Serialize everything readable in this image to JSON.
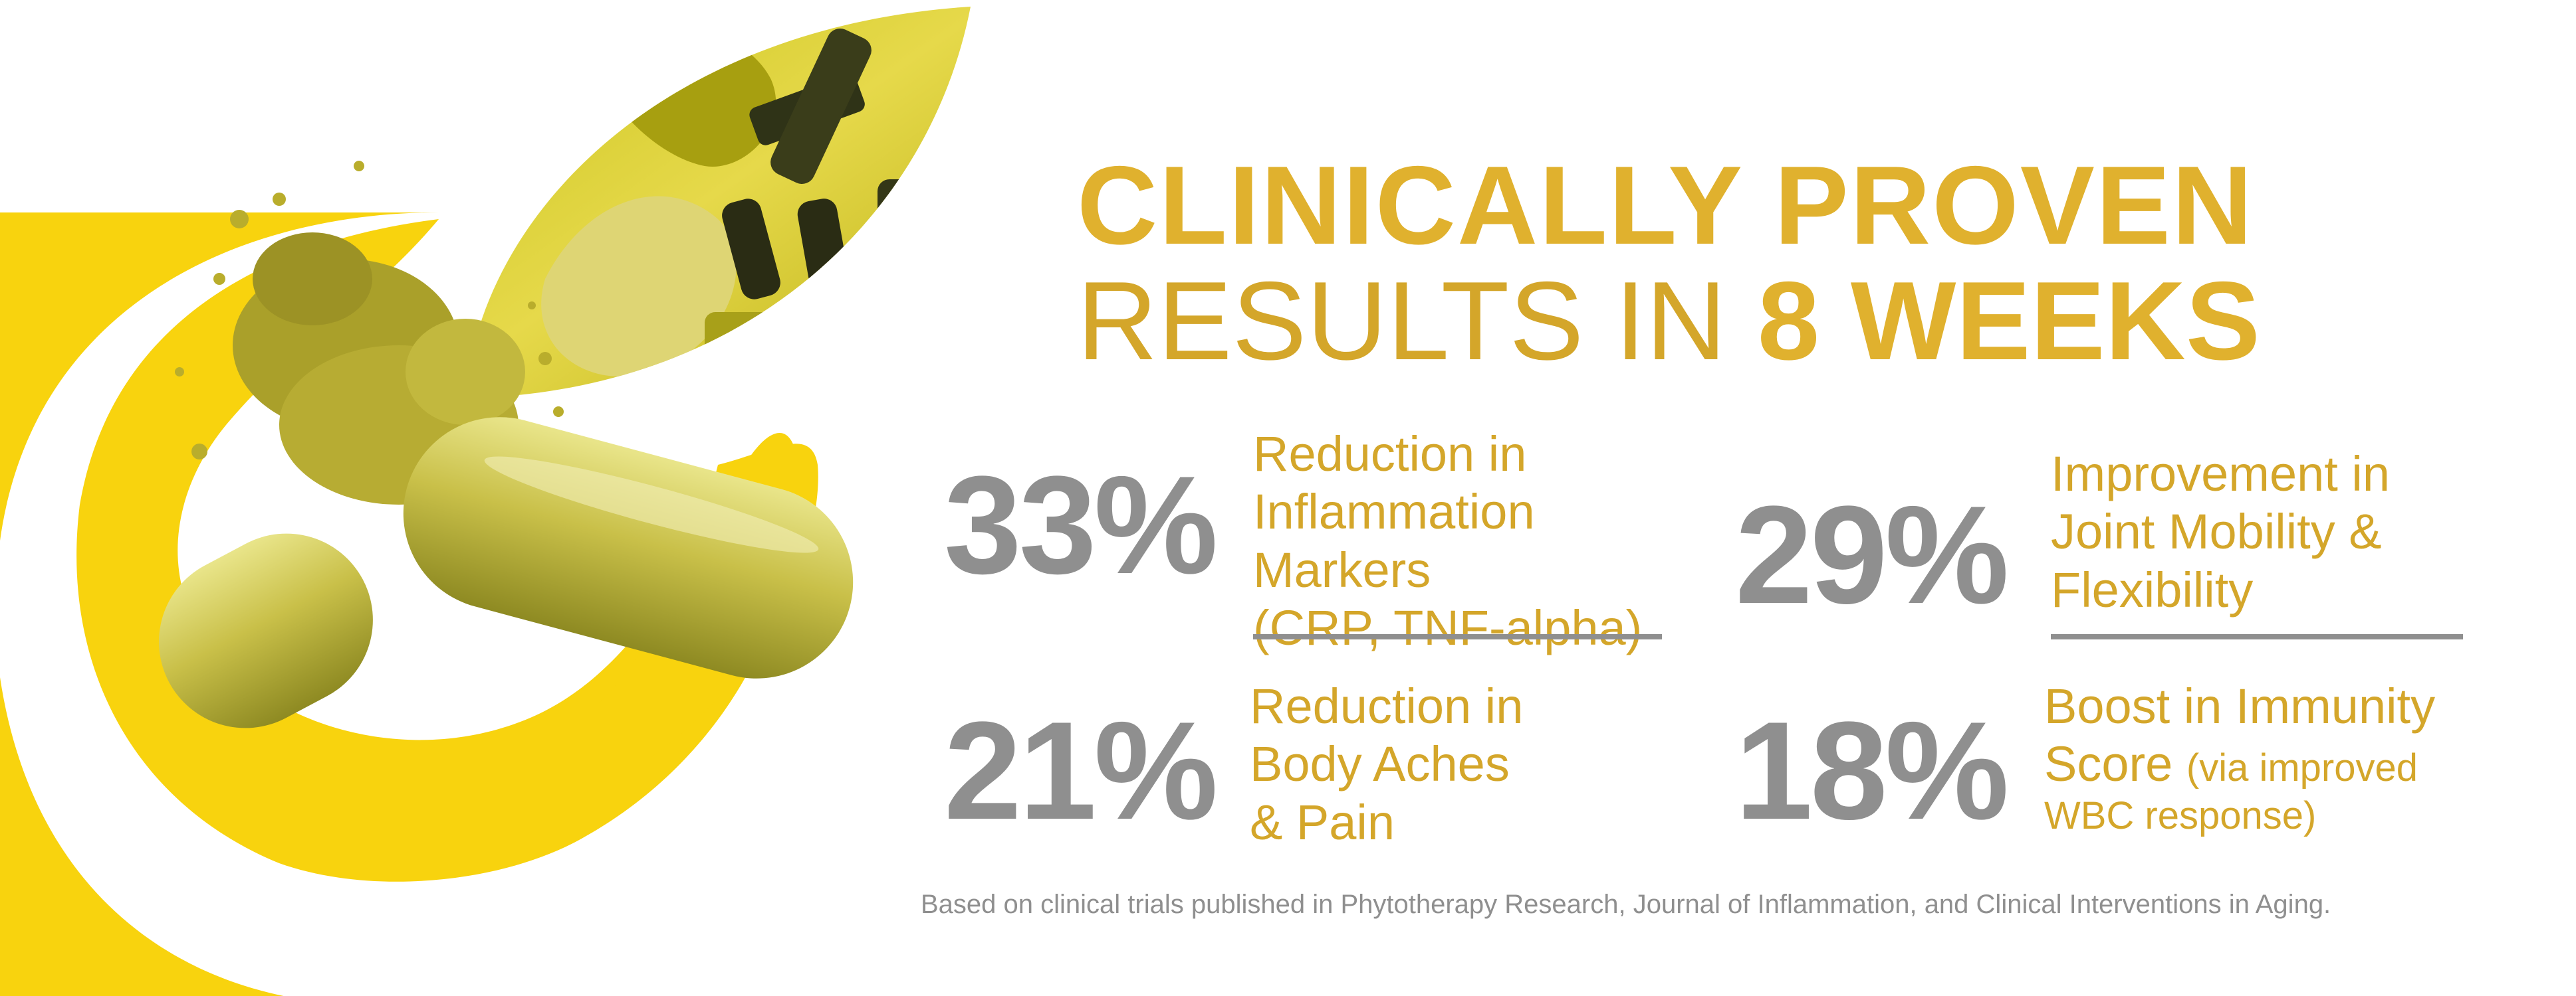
{
  "headline": {
    "line1": "CLINICALLY PROVEN",
    "line2_regular": "RESULTS IN ",
    "line2_bold": "8 WEEKS"
  },
  "stats": [
    {
      "value": "33%",
      "line1": "Reduction in",
      "line2": "Inflammation",
      "line3": "Markers",
      "line4": "(CRP, TNF-alpha)"
    },
    {
      "value": "29%",
      "line1": "Improvement in",
      "line2": "Joint Mobility &",
      "line3": "Flexibility"
    },
    {
      "value": "21%",
      "line1": "Reduction in",
      "line2": "Body Aches",
      "line3": "& Pain"
    },
    {
      "value": "18%",
      "line1": "Boost in Immunity",
      "line2": "Score",
      "line2_small": "(via improved",
      "line3": "WBC response)"
    }
  ],
  "footnote": "Based on clinical trials published in Phytotherapy Research, Journal of Inflammation, and Clinical Interventions in Aging.",
  "colors": {
    "gold": "#e0b12e",
    "gold_text": "#d4a62a",
    "gray": "#8f8f8f",
    "yellow_arc": "#f8d30e"
  },
  "art": {
    "arc": "yellow-arc-shape",
    "leaf": "microscope-leaf-image",
    "capsule": "open-capsule-with-powder"
  }
}
